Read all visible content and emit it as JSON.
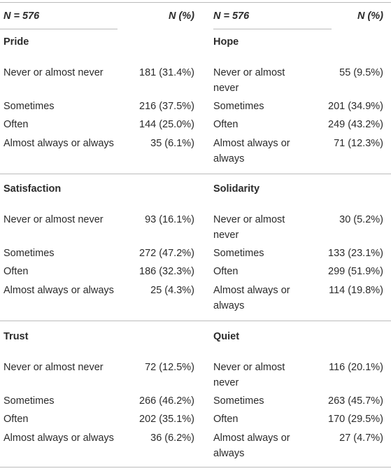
{
  "header": [
    "N = 576",
    "N (%)",
    "N = 576",
    "N (%)"
  ],
  "sections": [
    {
      "left": {
        "title": "Pride",
        "rows": [
          [
            "Never or almost never",
            "181 (31.4%)"
          ],
          [
            "Sometimes",
            "216 (37.5%)"
          ],
          [
            "Often",
            "144 (25.0%)"
          ],
          [
            "Almost always or always",
            "35 (6.1%)"
          ]
        ]
      },
      "right": {
        "title": "Hope",
        "rows": [
          [
            "Never or almost never",
            "55 (9.5%)"
          ],
          [
            "Sometimes",
            "201 (34.9%)"
          ],
          [
            "Often",
            "249 (43.2%)"
          ],
          [
            "Almost always or always",
            "71 (12.3%)"
          ]
        ]
      }
    },
    {
      "left": {
        "title": "Satisfaction",
        "rows": [
          [
            "Never or almost never",
            "93 (16.1%)"
          ],
          [
            "Sometimes",
            "272 (47.2%)"
          ],
          [
            "Often",
            "186 (32.3%)"
          ],
          [
            "Almost always or always",
            "25 (4.3%)"
          ]
        ]
      },
      "right": {
        "title": "Solidarity",
        "rows": [
          [
            "Never or almost never",
            "30 (5.2%)"
          ],
          [
            "Sometimes",
            "133 (23.1%)"
          ],
          [
            "Often",
            "299 (51.9%)"
          ],
          [
            "Almost always or always",
            "114 (19.8%)"
          ]
        ]
      }
    },
    {
      "left": {
        "title": "Trust",
        "rows": [
          [
            "Never or almost never",
            "72 (12.5%)"
          ],
          [
            "Sometimes",
            "266 (46.2%)"
          ],
          [
            "Often",
            "202 (35.1%)"
          ],
          [
            "Almost always or always",
            "36 (6.2%)"
          ]
        ]
      },
      "right": {
        "title": "Quiet",
        "rows": [
          [
            "Never or almost never",
            "116 (20.1%)"
          ],
          [
            "Sometimes",
            "263 (45.7%)"
          ],
          [
            "Often",
            "170 (29.5%)"
          ],
          [
            "Almost always or always",
            "27 (4.7%)"
          ]
        ]
      }
    }
  ]
}
